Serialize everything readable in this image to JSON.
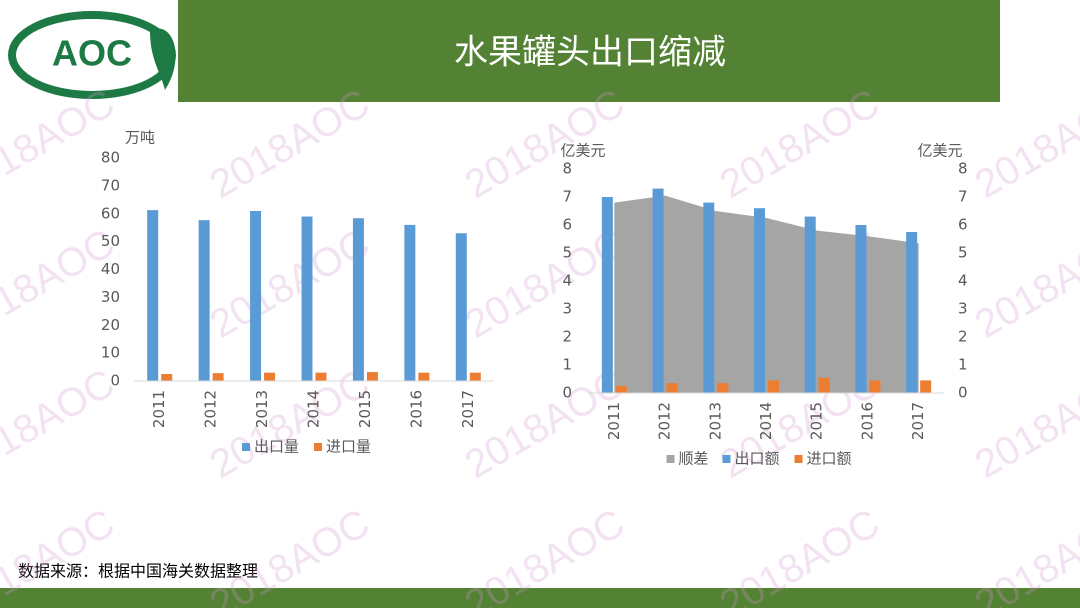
{
  "header": {
    "logo": "AOC",
    "title": "水果罐头出口缩减"
  },
  "watermark": "2018AOC",
  "chart_data": [
    {
      "type": "bar",
      "ylabel": "万吨",
      "categories": [
        "2011",
        "2012",
        "2013",
        "2014",
        "2015",
        "2016",
        "2017"
      ],
      "series": [
        {
          "name": "出口量",
          "color": "#5b9bd5",
          "values": [
            61.3,
            57.7,
            61,
            59,
            58.4,
            56,
            53
          ]
        },
        {
          "name": "进口量",
          "color": "#ed7d31",
          "values": [
            2.5,
            2.8,
            3,
            3,
            3.2,
            3,
            3
          ]
        }
      ],
      "ylim": [
        0,
        80
      ],
      "yticks": [
        0,
        10,
        20,
        30,
        40,
        50,
        60,
        70,
        80
      ],
      "legend": "bottom"
    },
    {
      "type": "combo",
      "ylabel": "亿美元",
      "y2label": "亿美元",
      "categories": [
        "2011",
        "2012",
        "2013",
        "2014",
        "2015",
        "2016",
        "2017"
      ],
      "series": [
        {
          "name": "顺差",
          "type": "area",
          "axis": "y2",
          "color": "#a5a5a5",
          "values": [
            6.8,
            7.05,
            6.5,
            6.25,
            5.8,
            5.6,
            5.35
          ]
        },
        {
          "name": "出口额",
          "type": "bar",
          "color": "#5b9bd5",
          "values": [
            7.0,
            7.3,
            6.8,
            6.6,
            6.3,
            6.0,
            5.75
          ]
        },
        {
          "name": "进口额",
          "type": "bar",
          "color": "#ed7d31",
          "values": [
            0.25,
            0.35,
            0.35,
            0.45,
            0.55,
            0.45,
            0.45
          ]
        }
      ],
      "ylim": [
        0,
        8
      ],
      "yticks": [
        0,
        1,
        2,
        3,
        4,
        5,
        6,
        7,
        8
      ],
      "y2lim": [
        0,
        8
      ],
      "y2ticks": [
        0,
        1,
        2,
        3,
        4,
        5,
        6,
        7,
        8
      ],
      "legend": "bottom"
    }
  ],
  "footer": {
    "source": "数据来源：根据中国海关数据整理"
  }
}
